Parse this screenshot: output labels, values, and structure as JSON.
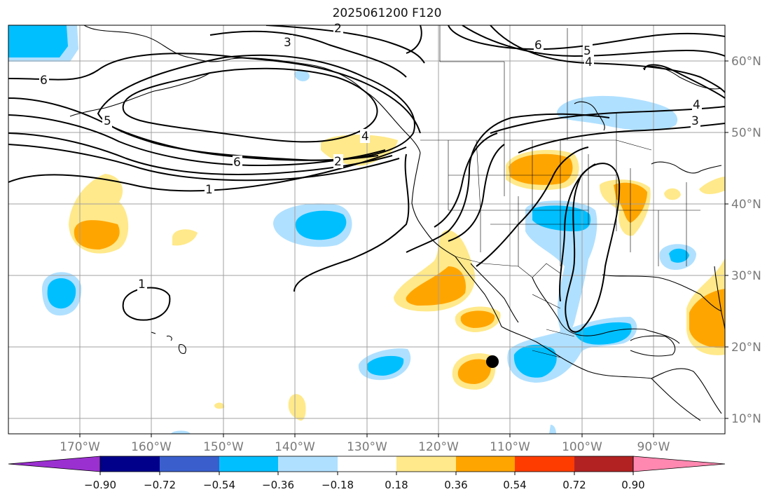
{
  "title": "2025061200 F120",
  "map": {
    "lon_labels": [
      "170°W",
      "160°W",
      "150°W",
      "140°W",
      "130°W",
      "120°W",
      "110°W",
      "100°W",
      "90°W"
    ],
    "lat_labels": [
      "60°N",
      "50°N",
      "40°N",
      "30°N",
      "20°N",
      "10°N"
    ],
    "contour_labels": [
      "2",
      "3",
      "6",
      "5",
      "4",
      "6",
      "5",
      "4",
      "3",
      "2",
      "1",
      "1"
    ],
    "colors": {
      "land_outline": "#000000",
      "grid": "#a0a0a0",
      "contour": "#000000"
    }
  },
  "colorbar": {
    "tick_labels": [
      "−0.90",
      "−0.72",
      "−0.54",
      "−0.36",
      "−0.18",
      "0.18",
      "0.36",
      "0.54",
      "0.72",
      "0.90"
    ],
    "colors": [
      "#9b30d0",
      "#00008b",
      "#3a5fcd",
      "#00bfff",
      "#b0e0ff",
      "#ffffff",
      "#ffe98a",
      "#ffa500",
      "#ff3c00",
      "#b22222",
      "#ff88b0"
    ]
  }
}
